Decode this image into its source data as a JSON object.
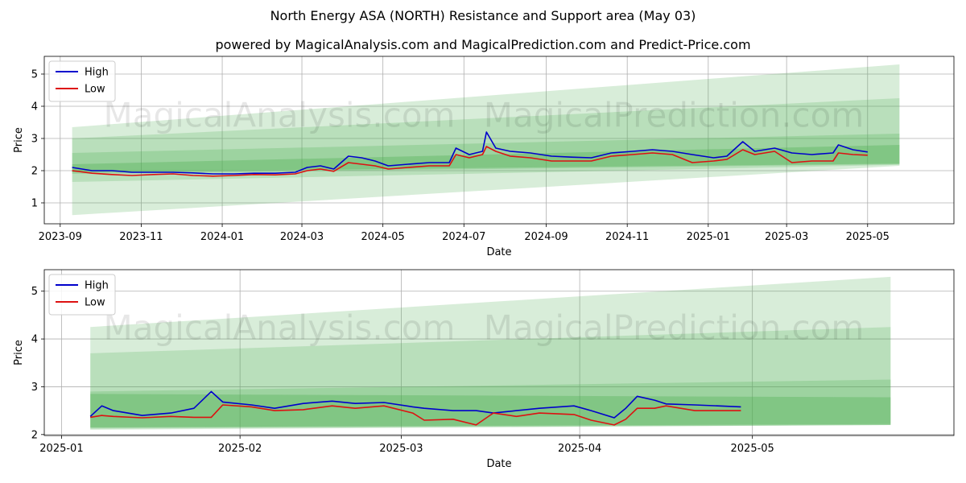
{
  "header": {
    "title": "North Energy ASA (NORTH) Resistance and Support area (May 03)",
    "subtitle": "powered by MagicalAnalysis.com and MagicalPrediction.com and Predict-Price.com"
  },
  "watermarks": [
    "MagicalAnalysis.com",
    "MagicalPrediction.com"
  ],
  "colors": {
    "high": "#0000cc",
    "low": "#dd1111",
    "band": "#4caf50",
    "grid": "#b0b0b0"
  },
  "chart_data": [
    {
      "type": "line",
      "xlabel": "Date",
      "ylabel": "Price",
      "x_ticks": [
        "2023-09",
        "2023-11",
        "2024-01",
        "2024-03",
        "2024-05",
        "2024-07",
        "2024-09",
        "2024-11",
        "2025-01",
        "2025-03",
        "2025-05"
      ],
      "y_ticks": [
        1,
        2,
        3,
        4,
        5
      ],
      "xlim": [
        "2023-08-20",
        "2025-07-05"
      ],
      "ylim": [
        0.35,
        5.55
      ],
      "grid": true,
      "legend": {
        "position": "top-left",
        "entries": [
          "High",
          "Low"
        ]
      },
      "bands": [
        {
          "start": "2023-09-10",
          "end": "2025-05-25",
          "lo": [
            0.62,
            2.15
          ],
          "hi": [
            3.35,
            5.3
          ],
          "opacity": 0.22
        },
        {
          "start": "2023-09-10",
          "end": "2025-05-25",
          "lo": [
            1.65,
            2.18
          ],
          "hi": [
            3.0,
            4.25
          ],
          "opacity": 0.22
        },
        {
          "start": "2023-09-10",
          "end": "2025-05-25",
          "lo": [
            1.9,
            2.2
          ],
          "hi": [
            2.55,
            3.15
          ],
          "opacity": 0.25
        },
        {
          "start": "2023-09-10",
          "end": "2025-05-25",
          "lo": [
            1.95,
            2.22
          ],
          "hi": [
            2.2,
            2.8
          ],
          "opacity": 0.35
        }
      ],
      "series": [
        {
          "name": "High",
          "x": [
            "2023-09-10",
            "2023-09-25",
            "2023-10-10",
            "2023-10-25",
            "2023-11-10",
            "2023-11-25",
            "2023-12-10",
            "2023-12-25",
            "2024-01-10",
            "2024-01-25",
            "2024-02-10",
            "2024-02-25",
            "2024-03-05",
            "2024-03-15",
            "2024-03-25",
            "2024-04-05",
            "2024-04-15",
            "2024-04-25",
            "2024-05-05",
            "2024-05-20",
            "2024-06-05",
            "2024-06-20",
            "2024-06-25",
            "2024-07-05",
            "2024-07-15",
            "2024-07-18",
            "2024-07-25",
            "2024-08-05",
            "2024-08-20",
            "2024-09-05",
            "2024-09-20",
            "2024-10-05",
            "2024-10-20",
            "2024-11-05",
            "2024-11-20",
            "2024-12-05",
            "2024-12-20",
            "2025-01-05",
            "2025-01-15",
            "2025-01-27",
            "2025-02-05",
            "2025-02-20",
            "2025-03-05",
            "2025-03-20",
            "2025-04-05",
            "2025-04-09",
            "2025-04-20",
            "2025-05-01"
          ],
          "y": [
            2.1,
            2.0,
            2.0,
            1.95,
            1.95,
            1.95,
            1.93,
            1.9,
            1.9,
            1.92,
            1.92,
            1.95,
            2.1,
            2.15,
            2.05,
            2.45,
            2.4,
            2.3,
            2.15,
            2.2,
            2.25,
            2.25,
            2.7,
            2.5,
            2.6,
            3.2,
            2.7,
            2.6,
            2.55,
            2.45,
            2.42,
            2.4,
            2.55,
            2.6,
            2.65,
            2.6,
            2.5,
            2.4,
            2.45,
            2.9,
            2.6,
            2.7,
            2.55,
            2.5,
            2.55,
            2.8,
            2.65,
            2.58
          ]
        },
        {
          "name": "Low",
          "x": [
            "2023-09-10",
            "2023-09-25",
            "2023-10-10",
            "2023-10-25",
            "2023-11-10",
            "2023-11-25",
            "2023-12-10",
            "2023-12-25",
            "2024-01-10",
            "2024-01-25",
            "2024-02-10",
            "2024-02-25",
            "2024-03-05",
            "2024-03-15",
            "2024-03-25",
            "2024-04-05",
            "2024-04-15",
            "2024-04-25",
            "2024-05-05",
            "2024-05-20",
            "2024-06-05",
            "2024-06-20",
            "2024-06-25",
            "2024-07-05",
            "2024-07-15",
            "2024-07-18",
            "2024-07-25",
            "2024-08-05",
            "2024-08-20",
            "2024-09-05",
            "2024-09-20",
            "2024-10-05",
            "2024-10-20",
            "2024-11-05",
            "2024-11-20",
            "2024-12-05",
            "2024-12-20",
            "2025-01-05",
            "2025-01-15",
            "2025-01-27",
            "2025-02-05",
            "2025-02-20",
            "2025-03-05",
            "2025-03-20",
            "2025-04-05",
            "2025-04-09",
            "2025-04-20",
            "2025-05-01"
          ],
          "y": [
            2.0,
            1.92,
            1.88,
            1.85,
            1.88,
            1.9,
            1.85,
            1.83,
            1.85,
            1.88,
            1.87,
            1.9,
            2.0,
            2.05,
            1.98,
            2.25,
            2.2,
            2.15,
            2.05,
            2.1,
            2.15,
            2.15,
            2.5,
            2.4,
            2.5,
            2.75,
            2.6,
            2.45,
            2.4,
            2.3,
            2.3,
            2.3,
            2.45,
            2.5,
            2.55,
            2.5,
            2.25,
            2.3,
            2.35,
            2.65,
            2.5,
            2.6,
            2.25,
            2.3,
            2.3,
            2.55,
            2.5,
            2.48
          ]
        }
      ]
    },
    {
      "type": "line",
      "xlabel": "Date",
      "ylabel": "Price",
      "x_ticks": [
        "2025-01",
        "2025-02",
        "2025-03",
        "2025-04",
        "2025-05"
      ],
      "y_ticks": [
        2,
        3,
        4,
        5
      ],
      "xlim": [
        "2024-12-29",
        "2025-06-05"
      ],
      "ylim": [
        1.98,
        5.45
      ],
      "grid": true,
      "legend": {
        "position": "top-left",
        "entries": [
          "High",
          "Low"
        ]
      },
      "bands": [
        {
          "start": "2025-01-06",
          "end": "2025-05-25",
          "lo": [
            2.1,
            2.2
          ],
          "hi": [
            4.25,
            5.3
          ],
          "opacity": 0.22
        },
        {
          "start": "2025-01-06",
          "end": "2025-05-25",
          "lo": [
            2.12,
            2.2
          ],
          "hi": [
            3.7,
            4.25
          ],
          "opacity": 0.22
        },
        {
          "start": "2025-01-06",
          "end": "2025-05-25",
          "lo": [
            2.14,
            2.2
          ],
          "hi": [
            2.9,
            3.15
          ],
          "opacity": 0.25
        },
        {
          "start": "2025-01-06",
          "end": "2025-05-25",
          "lo": [
            2.15,
            2.22
          ],
          "hi": [
            2.85,
            2.78
          ],
          "opacity": 0.35
        }
      ],
      "series": [
        {
          "name": "High",
          "x": [
            "2025-01-06",
            "2025-01-08",
            "2025-01-10",
            "2025-01-15",
            "2025-01-20",
            "2025-01-24",
            "2025-01-27",
            "2025-01-29",
            "2025-02-03",
            "2025-02-07",
            "2025-02-12",
            "2025-02-17",
            "2025-02-21",
            "2025-02-26",
            "2025-03-03",
            "2025-03-05",
            "2025-03-10",
            "2025-03-14",
            "2025-03-17",
            "2025-03-21",
            "2025-03-25",
            "2025-03-31",
            "2025-04-03",
            "2025-04-07",
            "2025-04-09",
            "2025-04-11",
            "2025-04-14",
            "2025-04-16",
            "2025-04-21",
            "2025-04-25",
            "2025-04-29"
          ],
          "y": [
            2.38,
            2.6,
            2.5,
            2.4,
            2.45,
            2.55,
            2.9,
            2.68,
            2.62,
            2.55,
            2.65,
            2.7,
            2.65,
            2.67,
            2.58,
            2.55,
            2.5,
            2.5,
            2.45,
            2.5,
            2.55,
            2.6,
            2.5,
            2.35,
            2.55,
            2.8,
            2.72,
            2.64,
            2.62,
            2.6,
            2.58
          ]
        },
        {
          "name": "Low",
          "x": [
            "2025-01-06",
            "2025-01-08",
            "2025-01-10",
            "2025-01-15",
            "2025-01-20",
            "2025-01-24",
            "2025-01-27",
            "2025-01-29",
            "2025-02-03",
            "2025-02-07",
            "2025-02-12",
            "2025-02-17",
            "2025-02-21",
            "2025-02-26",
            "2025-03-03",
            "2025-03-05",
            "2025-03-10",
            "2025-03-14",
            "2025-03-17",
            "2025-03-21",
            "2025-03-25",
            "2025-03-31",
            "2025-04-03",
            "2025-04-07",
            "2025-04-09",
            "2025-04-11",
            "2025-04-14",
            "2025-04-16",
            "2025-04-21",
            "2025-04-25",
            "2025-04-29"
          ],
          "y": [
            2.36,
            2.4,
            2.38,
            2.35,
            2.38,
            2.36,
            2.36,
            2.62,
            2.58,
            2.5,
            2.52,
            2.6,
            2.55,
            2.6,
            2.45,
            2.3,
            2.32,
            2.2,
            2.45,
            2.38,
            2.45,
            2.42,
            2.3,
            2.2,
            2.32,
            2.55,
            2.55,
            2.6,
            2.5,
            2.5,
            2.5
          ]
        }
      ]
    }
  ]
}
